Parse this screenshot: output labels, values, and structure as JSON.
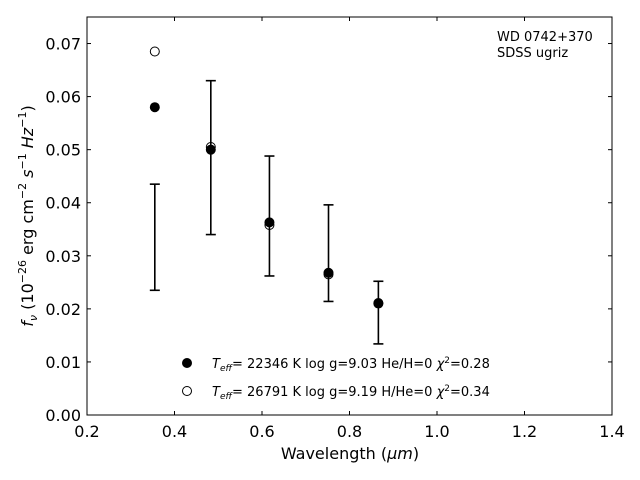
{
  "chart_data": {
    "type": "scatter",
    "title": "",
    "xlabel": {
      "main": "Wavelength (",
      "unit": "μm",
      "close": ")"
    },
    "ylabel": {
      "prefix": "f",
      "sub": "ν",
      "rest": " (10",
      "exp1": "−26",
      "mid": " erg cm",
      "exp2": "−2",
      "s": " s",
      "exp3": "−1",
      "hz": " Hz",
      "exp4": "−1",
      "close": ")"
    },
    "xlim": [
      0.2,
      1.4
    ],
    "ylim": [
      0.0,
      0.075
    ],
    "xticks": [
      "0.2",
      "0.4",
      "0.6",
      "0.8",
      "1.0",
      "1.2",
      "1.4"
    ],
    "yticks": [
      "0.00",
      "0.01",
      "0.02",
      "0.03",
      "0.04",
      "0.05",
      "0.06",
      "0.07"
    ],
    "grid": false,
    "annotation": [
      "WD 0742+370",
      "SDSS ugriz"
    ],
    "observed": {
      "x": [
        0.355,
        0.483,
        0.617,
        0.752,
        0.866
      ],
      "y": [
        0.0335,
        0.0485,
        0.0375,
        0.0305,
        0.0193
      ],
      "yerr": [
        0.01,
        0.0145,
        0.0113,
        0.0091,
        0.0059
      ]
    },
    "series": [
      {
        "marker": "filled-circle",
        "x": [
          0.355,
          0.483,
          0.617,
          0.752,
          0.866
        ],
        "y": [
          0.058,
          0.05,
          0.0363,
          0.0268,
          0.0211
        ],
        "legend": {
          "teff": "T",
          "teff_sub": "eff",
          "text": "= 22346 K  log g=9.03  He/H=0  ",
          "chi": "χ",
          "chi_sup": "2",
          "chi_val": "=0.28"
        }
      },
      {
        "marker": "open-circle",
        "x": [
          0.355,
          0.483,
          0.617,
          0.752,
          0.866
        ],
        "y": [
          0.0685,
          0.0505,
          0.0358,
          0.0265,
          0.021
        ],
        "legend": {
          "teff": "T",
          "teff_sub": "eff",
          "text": "= 26791 K  log g=9.19  H/He=0  ",
          "chi": "χ",
          "chi_sup": "2",
          "chi_val": "=0.34"
        }
      }
    ],
    "legend_position": "bottom-center"
  }
}
